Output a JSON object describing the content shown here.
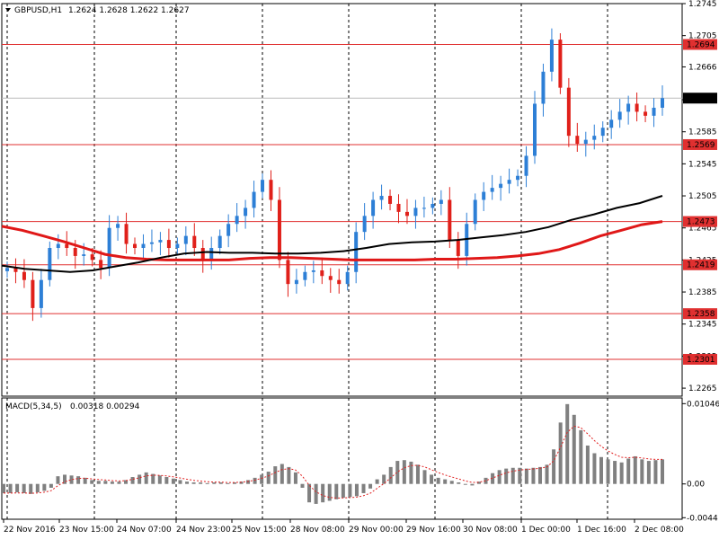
{
  "header": {
    "symbol": "GBPUSD,H1",
    "ohlc": "1.2624 1.2628 1.2622 1.2627"
  },
  "macd_header": {
    "title": "MACD(5,34,5)",
    "values": "0.00318 0.00294"
  },
  "colors": {
    "bull": "#2d7fd6",
    "bear": "#e0201a",
    "level_line": "#e03030",
    "ma_fast": "#e01818",
    "ma_slow": "#000000",
    "histogram": "#808080",
    "signal": "#e02020",
    "price_badge": "#000000",
    "price_badge_text": "#ffffff"
  },
  "chart_data": [
    {
      "type": "candlestick",
      "title": "GBPUSD,H1",
      "ylim": [
        1.2255,
        1.2745
      ],
      "price_ticks": [
        "1.2745",
        "1.2705",
        "1.2666",
        "1.2625",
        "1.2585",
        "1.2545",
        "1.2505",
        "1.2465",
        "1.2425",
        "1.2385",
        "1.2345",
        "1.2305",
        "1.2265"
      ],
      "time_labels": [
        "22 Nov 2016",
        "23 Nov 15:00",
        "24 Nov 07:00",
        "24 Nov 23:00",
        "25 Nov 15:00",
        "28 Nov 08:00",
        "29 Nov 00:00",
        "29 Nov 16:00",
        "30 Nov 08:00",
        "1 Dec 00:00",
        "1 Dec 16:00",
        "2 Dec 08:00"
      ],
      "levels": [
        {
          "price": 1.2694,
          "label": "1.2694"
        },
        {
          "price": 1.2569,
          "label": "1.2569"
        },
        {
          "price": 1.2473,
          "label": "1.2473"
        },
        {
          "price": 1.2419,
          "label": "1.2419"
        },
        {
          "price": 1.2358,
          "label": "1.2358"
        },
        {
          "price": 1.2301,
          "label": "1.2301"
        }
      ],
      "current_price": {
        "price": 1.2627,
        "label": "1.2627"
      },
      "close_series_approx": [
        1.2415,
        1.241,
        1.24,
        1.2365,
        1.24,
        1.244,
        1.2445,
        1.244,
        1.243,
        1.2432,
        1.2425,
        1.2415,
        1.2465,
        1.247,
        1.2445,
        1.244,
        1.2445,
        1.2447,
        1.245,
        1.244,
        1.2445,
        1.2455,
        1.244,
        1.2425,
        1.244,
        1.2455,
        1.247,
        1.248,
        1.249,
        1.251,
        1.2525,
        1.25,
        1.2425,
        1.2395,
        1.24,
        1.241,
        1.2412,
        1.2405,
        1.24,
        1.2395,
        1.241,
        1.246,
        1.248,
        1.25,
        1.2505,
        1.2495,
        1.2485,
        1.248,
        1.249,
        1.249,
        1.2495,
        1.25,
        1.245,
        1.243,
        1.247,
        1.25,
        1.251,
        1.2515,
        1.252,
        1.2525,
        1.253,
        1.2555,
        1.262,
        1.266,
        1.27,
        1.264,
        1.258,
        1.257,
        1.2575,
        1.258,
        1.259,
        1.26,
        1.261,
        1.262,
        1.261,
        1.2605,
        1.2615,
        1.2627
      ],
      "moving_averages": [
        {
          "name": "ma_fast",
          "color": "#e01818",
          "values_approx": [
            1.2467,
            1.2462,
            1.2455,
            1.2448,
            1.244,
            1.2432,
            1.2428,
            1.2426,
            1.2425,
            1.2425,
            1.2425,
            1.2425,
            1.2427,
            1.2428,
            1.2428,
            1.2427,
            1.2426,
            1.2425,
            1.2425,
            1.2425,
            1.2425,
            1.2426,
            1.2426,
            1.2427,
            1.2428,
            1.243,
            1.2433,
            1.2438,
            1.2446,
            1.2455,
            1.2462,
            1.2469,
            1.2473
          ]
        },
        {
          "name": "ma_slow",
          "color": "#000000",
          "values_approx": [
            1.2418,
            1.2414,
            1.2412,
            1.241,
            1.2412,
            1.2417,
            1.2422,
            1.2428,
            1.2433,
            1.2435,
            1.2434,
            1.2434,
            1.2433,
            1.2433,
            1.2434,
            1.2436,
            1.244,
            1.2445,
            1.2447,
            1.2448,
            1.245,
            1.2453,
            1.2456,
            1.246,
            1.2466,
            1.2475,
            1.2482,
            1.249,
            1.2496,
            1.2505
          ]
        }
      ]
    },
    {
      "type": "bar",
      "title": "MACD(5,34,5)",
      "ylim": [
        -0.0046,
        0.0112
      ],
      "ticks": [
        "0.01046",
        "0.00",
        "-0.0044"
      ],
      "histogram_approx": [
        -0.0012,
        -0.0012,
        -0.0011,
        -0.0012,
        -0.0013,
        -0.0011,
        -0.0009,
        -0.0005,
        0.001,
        0.0012,
        0.0011,
        0.001,
        0.0008,
        0.0005,
        0.0004,
        0.0004,
        0.0003,
        0.0003,
        0.0005,
        0.0009,
        0.0012,
        0.0015,
        0.0013,
        0.0011,
        0.0009,
        0.0007,
        0.0005,
        0.0003,
        0.0002,
        0.0002,
        0.0001,
        0.0002,
        0.0002,
        0.0001,
        0.0002,
        0.0003,
        0.0005,
        0.0008,
        0.0012,
        0.0016,
        0.0023,
        0.0026,
        0.0022,
        0.0015,
        -0.0005,
        -0.0024,
        -0.0026,
        -0.0024,
        -0.0022,
        -0.002,
        -0.0018,
        -0.0017,
        -0.0016,
        -0.0012,
        -0.0006,
        0.0006,
        0.0012,
        0.0022,
        0.003,
        0.0031,
        0.0029,
        0.0025,
        0.0018,
        0.0012,
        0.0008,
        0.0006,
        0.0004,
        0.0002,
        -0.0001,
        -0.0002,
        0.0003,
        0.0008,
        0.0014,
        0.0018,
        0.002,
        0.0021,
        0.0021,
        0.002,
        0.0021,
        0.0022,
        0.0025,
        0.0045,
        0.008,
        0.0104,
        0.009,
        0.007,
        0.005,
        0.004,
        0.0035,
        0.0032,
        0.003,
        0.0028,
        0.0033,
        0.0036,
        0.0032,
        0.003,
        0.0031,
        0.0032
      ]
    }
  ]
}
